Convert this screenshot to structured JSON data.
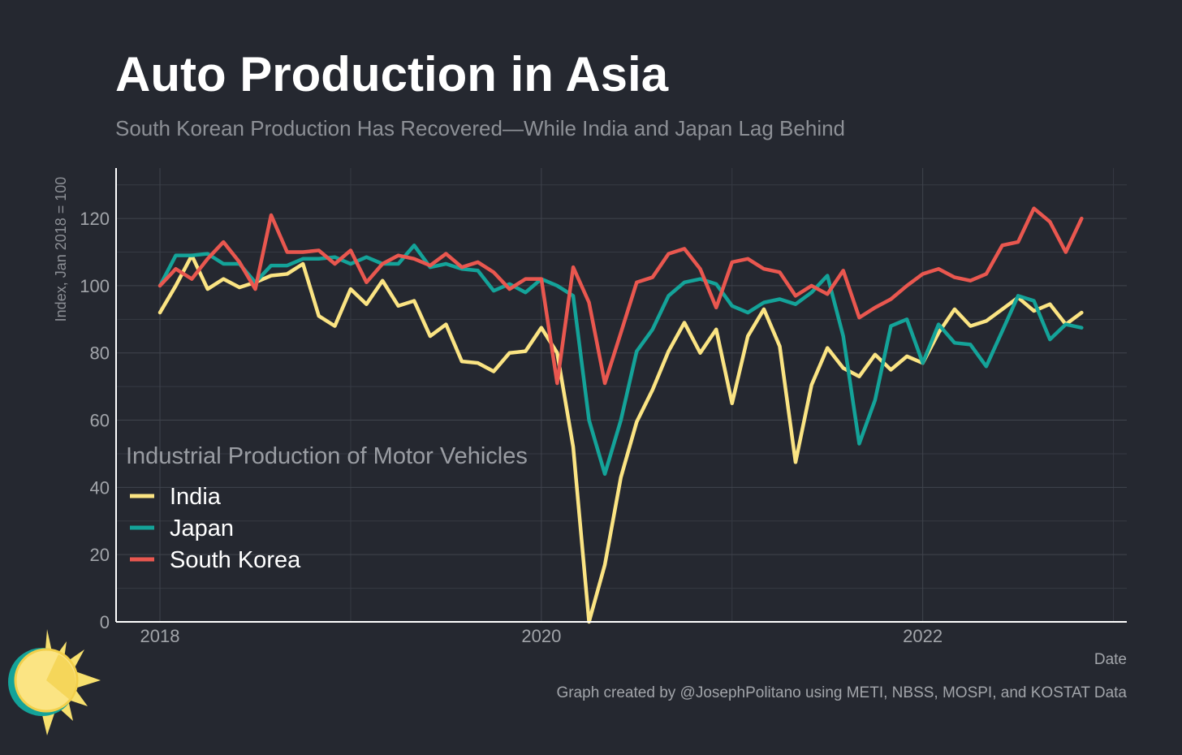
{
  "chart_data": {
    "type": "line",
    "title": "Auto Production in Asia",
    "subtitle": "South Korean Production Has Recovered—While India and Japan Lag Behind",
    "xlabel": "Date",
    "ylabel": "Index, Jan 2018 = 100",
    "caption": "Graph created by @JosephPolitano using METI, NBSS, MOSPI, and KOSTAT Data",
    "legend_title": "Industrial Production of Motor Vehicles",
    "legend": "lower left",
    "grid": true,
    "xlim": [
      2017.77,
      2023.07
    ],
    "xticks": [
      2018,
      2020,
      2022
    ],
    "xminorticks": [
      2019,
      2021,
      2023
    ],
    "ylim": [
      0,
      135
    ],
    "yticks": [
      0,
      20,
      40,
      60,
      80,
      100,
      120
    ],
    "yminorticks": [
      10,
      30,
      50,
      70,
      90,
      110,
      130
    ],
    "x": [
      2018,
      2018.083,
      2018.167,
      2018.25,
      2018.333,
      2018.417,
      2018.5,
      2018.583,
      2018.667,
      2018.75,
      2018.833,
      2018.917,
      2019,
      2019.083,
      2019.167,
      2019.25,
      2019.333,
      2019.417,
      2019.5,
      2019.583,
      2019.667,
      2019.75,
      2019.833,
      2019.917,
      2020,
      2020.083,
      2020.167,
      2020.25,
      2020.333,
      2020.417,
      2020.5,
      2020.583,
      2020.667,
      2020.75,
      2020.833,
      2020.917,
      2021,
      2021.083,
      2021.167,
      2021.25,
      2021.333,
      2021.417,
      2021.5,
      2021.583,
      2021.667,
      2021.75,
      2021.833,
      2021.917,
      2022,
      2022.083,
      2022.167,
      2022.25,
      2022.333,
      2022.417,
      2022.5,
      2022.583,
      2022.667,
      2022.75,
      2022.833
    ],
    "series": [
      {
        "name": "India",
        "color": "#fbe483",
        "values": [
          92,
          100,
          109,
          99,
          102,
          99.5,
          101,
          103,
          103.5,
          106.5,
          91,
          88,
          99,
          94.5,
          101.5,
          94,
          95.5,
          85,
          88.5,
          77.5,
          77,
          74.5,
          80,
          80.5,
          87.5,
          80,
          52,
          0,
          17,
          43,
          59.5,
          69,
          80.5,
          89,
          80,
          87,
          65,
          85,
          93,
          82,
          47.5,
          70.5,
          81.5,
          75.5,
          73,
          79.5,
          75,
          79,
          77,
          86,
          93,
          88,
          89.5,
          93,
          96.5,
          92.5,
          94.5,
          88.5,
          92
        ]
      },
      {
        "name": "Japan",
        "color": "#14a399",
        "values": [
          100,
          109,
          109,
          109.5,
          106.5,
          106.5,
          101,
          106,
          106,
          108,
          108,
          108.5,
          106.5,
          108.5,
          106.5,
          106.5,
          112,
          105.5,
          106.5,
          105,
          104.5,
          98.5,
          100.5,
          98,
          102,
          100,
          97,
          60,
          44,
          60,
          80.5,
          87,
          97,
          101,
          102,
          100.5,
          94,
          92,
          95,
          96,
          94.5,
          98,
          103,
          85,
          53,
          66,
          88,
          90,
          77,
          88.5,
          83,
          82.5,
          76,
          86.5,
          97,
          95.5,
          84,
          88.5,
          87.5
        ]
      },
      {
        "name": "South Korea",
        "color": "#e9574f",
        "values": [
          100,
          105,
          102,
          108,
          113,
          107,
          99,
          121,
          110,
          110,
          110.5,
          106.5,
          110.5,
          101,
          106.5,
          109,
          108,
          106,
          109.5,
          105.5,
          107,
          104,
          99,
          102,
          102,
          71,
          105.5,
          95,
          71,
          86,
          101,
          102.5,
          109.5,
          111,
          105,
          93.5,
          107,
          108,
          105,
          104,
          97,
          100,
          97.5,
          104.5,
          90.5,
          93.5,
          96,
          100,
          103.5,
          105,
          102.5,
          101.5,
          103.5,
          112,
          113,
          123,
          119,
          110,
          120
        ]
      }
    ]
  }
}
